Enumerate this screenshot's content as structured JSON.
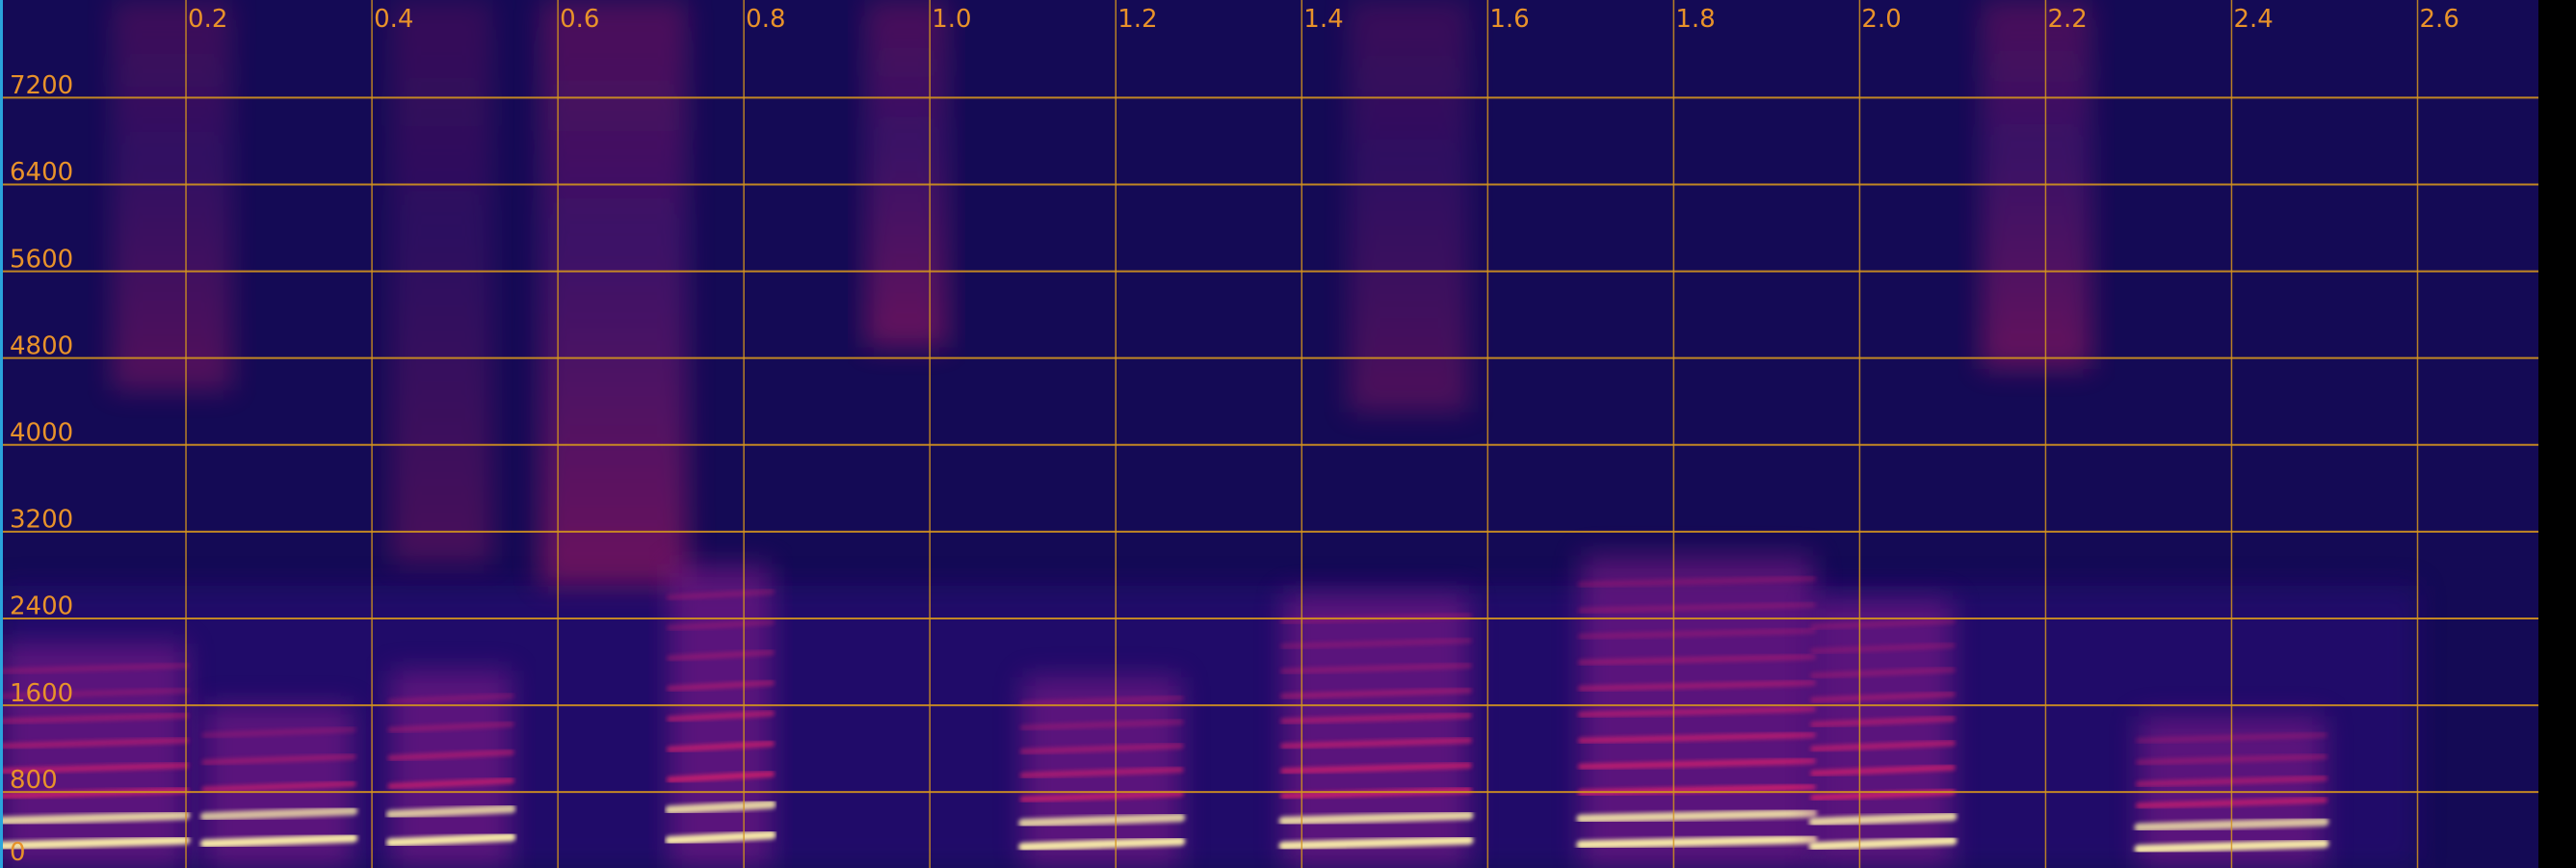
{
  "chart_data": {
    "type": "heatmap",
    "title": "",
    "xlabel": "",
    "ylabel": "",
    "xlim": [
      0.0,
      2.73
    ],
    "ylim": [
      0,
      8000
    ],
    "grid": true,
    "x_ticks": [
      "0.2",
      "0.4",
      "0.6",
      "0.8",
      "1.0",
      "1.2",
      "1.4",
      "1.6",
      "1.8",
      "2.0",
      "2.2",
      "2.4",
      "2.6"
    ],
    "x_tick_values": [
      0.2,
      0.4,
      0.6,
      0.8,
      1.0,
      1.2,
      1.4,
      1.6,
      1.8,
      2.0,
      2.2,
      2.4,
      2.6
    ],
    "y_ticks": [
      "0",
      "800",
      "1600",
      "2400",
      "3200",
      "4000",
      "4800",
      "5600",
      "6400",
      "7200"
    ],
    "y_tick_values": [
      0,
      800,
      1600,
      2400,
      3200,
      4000,
      4800,
      5600,
      6400,
      7200
    ],
    "gridline_y_values": [
      700,
      1500,
      2300,
      3100,
      3900,
      4700,
      5500,
      6300,
      7100
    ],
    "colors": {
      "background": "#140a55",
      "low": "#2a0f7a",
      "mid": "#8a1f8c",
      "high": "#e8226a",
      "peak": "#f7e9a8",
      "grid": "#d4941e",
      "tick_label": "#e8922a",
      "right_bar": "#000000",
      "left_edge": "#2aa4dc"
    },
    "voiced_segments": [
      {
        "t0": 0.0,
        "t1": 0.2,
        "f0": 230,
        "harmonics": 8
      },
      {
        "t0": 0.22,
        "t1": 0.38,
        "f0": 250,
        "harmonics": 5
      },
      {
        "t0": 0.42,
        "t1": 0.55,
        "f0": 260,
        "harmonics": 6
      },
      {
        "t0": 0.72,
        "t1": 0.83,
        "f0": 280,
        "harmonics": 9
      },
      {
        "t0": 1.1,
        "t1": 1.27,
        "f0": 220,
        "harmonics": 7
      },
      {
        "t0": 1.38,
        "t1": 1.58,
        "f0": 230,
        "harmonics": 10
      },
      {
        "t0": 1.7,
        "t1": 1.95,
        "f0": 240,
        "harmonics": 11
      },
      {
        "t0": 1.95,
        "t1": 2.1,
        "f0": 225,
        "harmonics": 10
      },
      {
        "t0": 2.3,
        "t1": 2.5,
        "f0": 200,
        "harmonics": 6
      }
    ],
    "noise_bands": [
      {
        "t0": 0.12,
        "t1": 0.25,
        "f_lo": 4400,
        "f_hi": 8000,
        "level": 0.55
      },
      {
        "t0": 0.42,
        "t1": 0.53,
        "f_lo": 2800,
        "f_hi": 8000,
        "level": 0.45
      },
      {
        "t0": 0.58,
        "t1": 0.74,
        "f_lo": 2600,
        "f_hi": 8000,
        "level": 0.75
      },
      {
        "t0": 0.93,
        "t1": 1.02,
        "f_lo": 4800,
        "f_hi": 8000,
        "level": 0.7
      },
      {
        "t0": 1.45,
        "t1": 1.58,
        "f_lo": 4200,
        "f_hi": 8000,
        "level": 0.5
      },
      {
        "t0": 2.13,
        "t1": 2.25,
        "f_lo": 4600,
        "f_hi": 8000,
        "level": 0.7
      }
    ]
  }
}
